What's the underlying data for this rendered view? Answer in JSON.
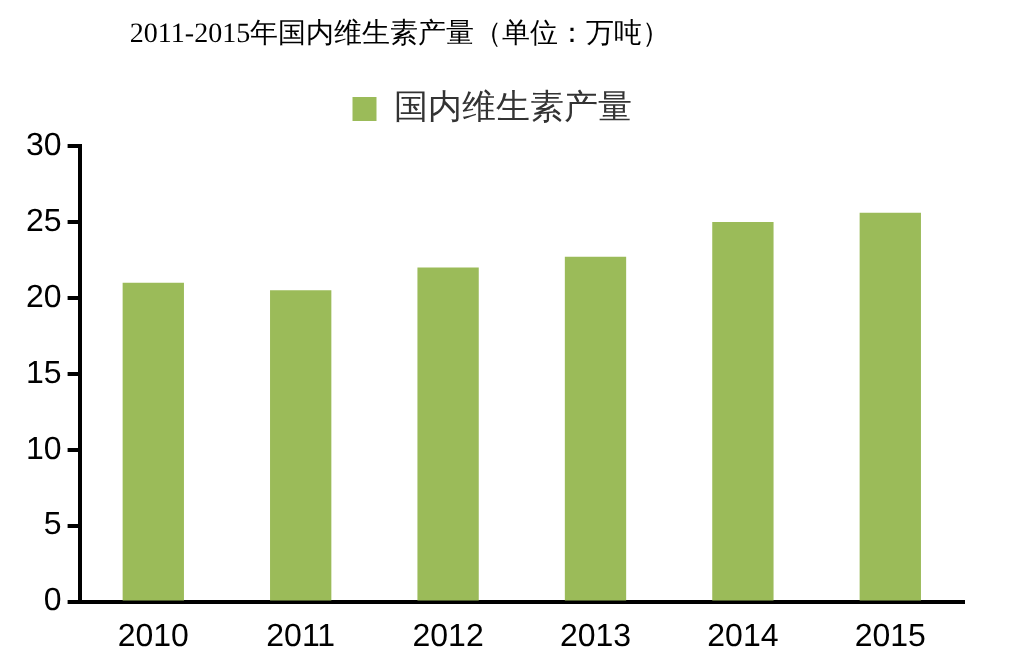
{
  "chart_data": {
    "type": "bar",
    "title": "2011-2015年国内维生素产量（单位：万吨）",
    "categories": [
      "2010",
      "2011",
      "2012",
      "2013",
      "2014",
      "2015"
    ],
    "series": [
      {
        "name": "国内维生素产量",
        "color": "#9bbb59",
        "values": [
          21.0,
          20.5,
          22.0,
          22.7,
          25.0,
          25.6
        ]
      }
    ],
    "ylim": [
      0,
      30
    ],
    "yticks": [
      0,
      5,
      10,
      15,
      20,
      25,
      30
    ],
    "grid": false,
    "legend": "top"
  }
}
